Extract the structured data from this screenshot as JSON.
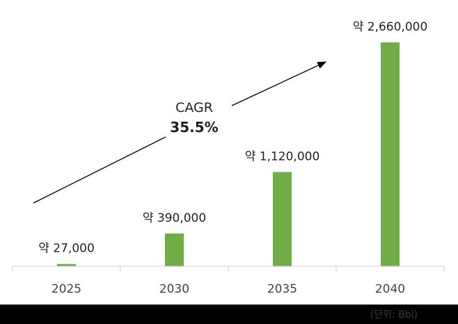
{
  "chart_data": {
    "type": "bar",
    "categories": [
      "2025",
      "2030",
      "2035",
      "2040"
    ],
    "values": [
      27000,
      390000,
      1120000,
      2660000
    ],
    "data_labels": [
      "약 27,000",
      "약 390,000",
      "약 1,120,000",
      "약 2,660,000"
    ],
    "title": "",
    "xlabel": "",
    "ylabel": "",
    "ylim": [
      0,
      2660000
    ],
    "bar_color": "#70ad47",
    "annotation": {
      "label": "CAGR",
      "value": "35.5%"
    },
    "unit_note": "(단위: Bbl)"
  }
}
